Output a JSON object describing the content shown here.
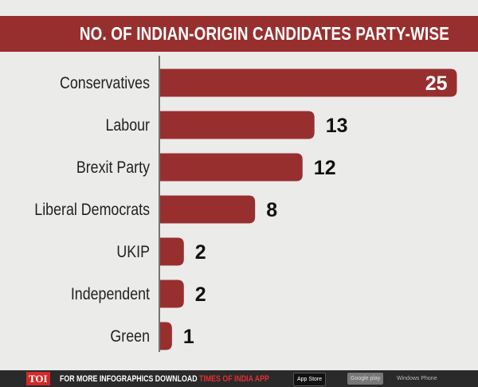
{
  "header": {
    "title": "NO. OF INDIAN-ORIGIN CANDIDATES PARTY-WISE"
  },
  "colors": {
    "bar": "#982f2f",
    "header": "#982f2f",
    "background": "#ebebea"
  },
  "chart_data": {
    "type": "bar",
    "orientation": "horizontal",
    "title": "NO. OF INDIAN-ORIGIN CANDIDATES PARTY-WISE",
    "categories": [
      "Conservatives",
      "Labour",
      "Brexit Party",
      "Liberal Democrats",
      "UKIP",
      "Independent",
      "Green"
    ],
    "values": [
      25,
      13,
      12,
      8,
      2,
      2,
      1
    ],
    "grid": false
  },
  "footer": {
    "logo": "TOI",
    "text": "FOR MORE  INFOGRAPHICS DOWNLOAD",
    "highlight": "TIMES OF INDIA  APP",
    "app_store": "App Store",
    "google_play": "Google play",
    "windows": "Windows Phone"
  }
}
